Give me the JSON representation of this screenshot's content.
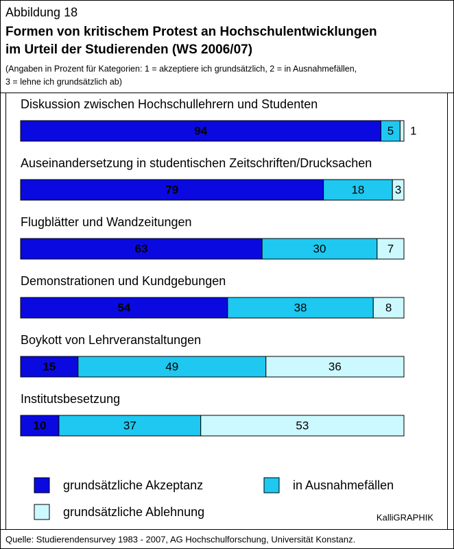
{
  "chart_data": {
    "type": "bar",
    "orientation": "horizontal",
    "stacked": true,
    "figure_label": "Abbildung 18",
    "title": [
      "Formen von kritischem Protest an Hochschulentwicklungen",
      "im Urteil der Studierenden (WS 2006/07)"
    ],
    "subtitle": [
      "(Angaben in Prozent für Kategorien: 1 = akzeptiere ich grundsätzlich, 2 = in Ausnahmefällen,",
      "3 = lehne ich grundsätzlich ab)"
    ],
    "categories": [
      "Diskussion zwischen Hochschullehrern und Studenten",
      "Auseinandersetzung in studentischen Zeitschriften/Drucksachen",
      "Flugblätter und Wandzeitungen",
      "Demonstrationen und Kundgebungen",
      "Boykott von Lehrveranstaltungen",
      "Institutsbesetzung"
    ],
    "series": [
      {
        "name": "grundsätzliche Akzeptanz",
        "color": "#0a0ae0",
        "values": [
          94,
          79,
          63,
          54,
          15,
          10
        ]
      },
      {
        "name": "in Ausnahmefällen",
        "color": "#1ec8f0",
        "values": [
          5,
          18,
          30,
          38,
          49,
          37
        ]
      },
      {
        "name": "grundsätzliche Ablehnung",
        "color": "#ccf8ff",
        "values": [
          1,
          3,
          7,
          8,
          36,
          53
        ]
      }
    ],
    "credit": "KalliGRAPHIK",
    "source": "Quelle: Studierendensurvey 1983 - 2007, AG Hochschulforschung, Universität Konstanz."
  }
}
